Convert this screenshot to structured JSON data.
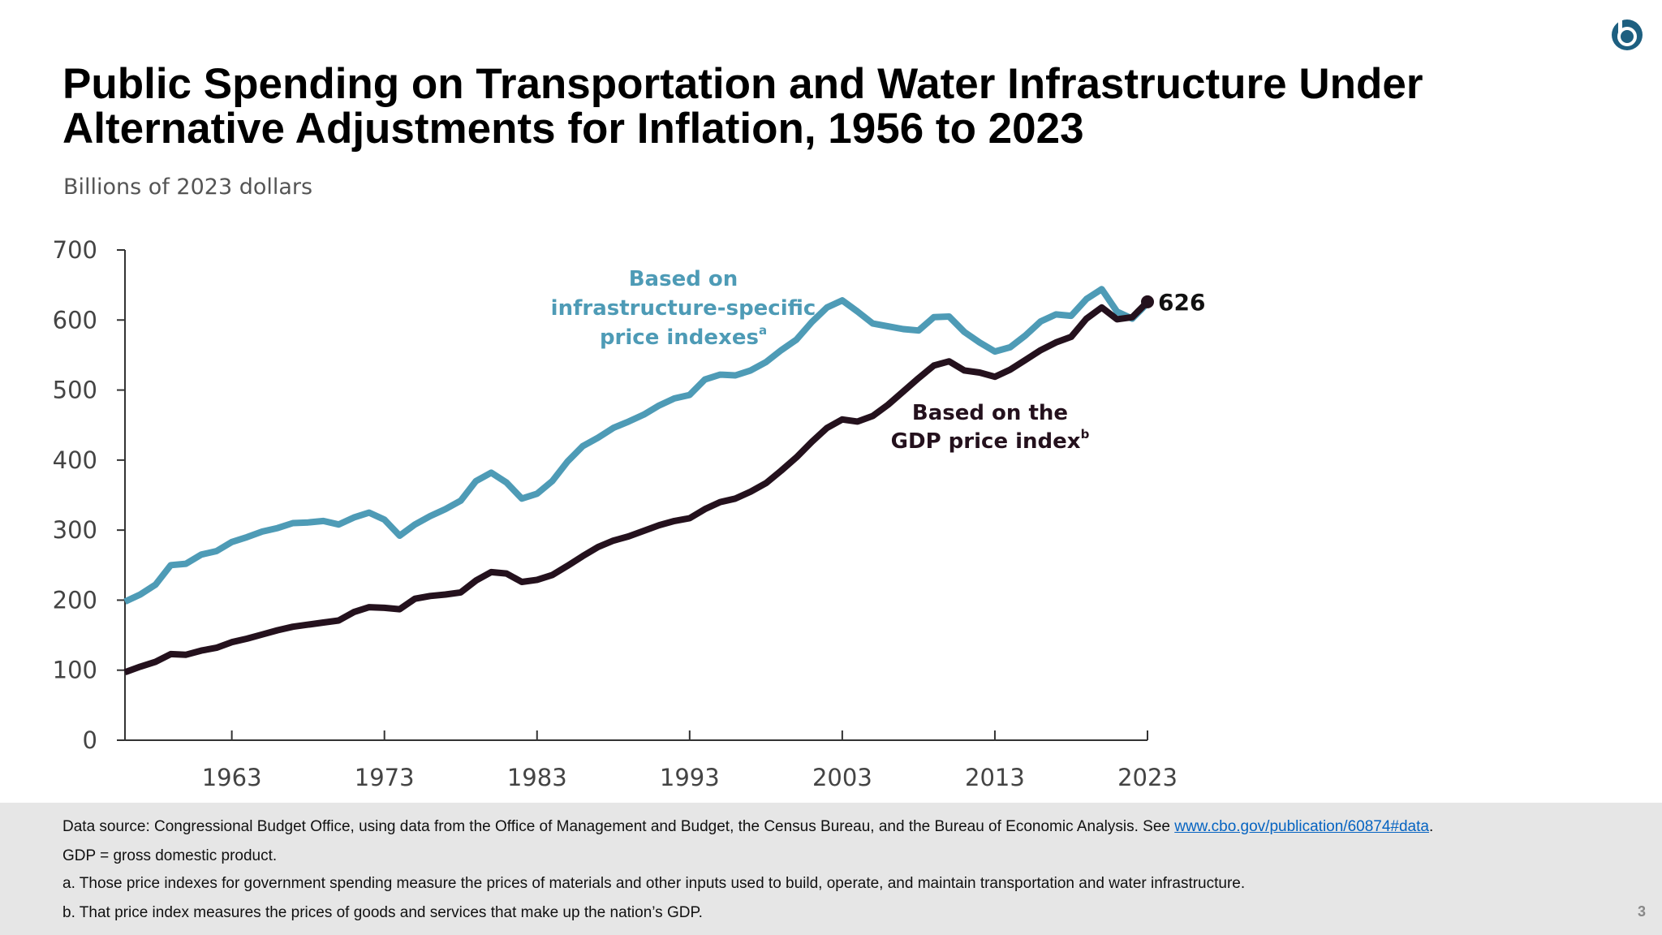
{
  "chart_data": {
    "type": "line",
    "title": [
      "Public Spending on Transportation and Water Infrastructure Under",
      "Alternative Adjustments for Inflation, 1956 to 2023"
    ],
    "subtitle": "Billions of 2023 dollars",
    "x": [
      1956,
      1957,
      1958,
      1959,
      1960,
      1961,
      1962,
      1963,
      1964,
      1965,
      1966,
      1967,
      1968,
      1969,
      1970,
      1971,
      1972,
      1973,
      1974,
      1975,
      1976,
      1977,
      1978,
      1979,
      1980,
      1981,
      1982,
      1983,
      1984,
      1985,
      1986,
      1987,
      1988,
      1989,
      1990,
      1991,
      1992,
      1993,
      1994,
      1995,
      1996,
      1997,
      1998,
      1999,
      2000,
      2001,
      2002,
      2003,
      2004,
      2005,
      2006,
      2007,
      2008,
      2009,
      2010,
      2011,
      2012,
      2013,
      2014,
      2015,
      2016,
      2017,
      2018,
      2019,
      2020,
      2021,
      2022,
      2023
    ],
    "xlim": [
      1956,
      2023
    ],
    "xticks": [
      1963,
      1973,
      1983,
      1993,
      2003,
      2013,
      2023
    ],
    "ylim": [
      0,
      700
    ],
    "yticks": [
      0,
      100,
      200,
      300,
      400,
      500,
      600,
      700
    ],
    "series": [
      {
        "name": [
          "Based on",
          "infrastructure-specific",
          "price indexes"
        ],
        "note": "a",
        "color": "#4e9bb6",
        "values": [
          198,
          208,
          222,
          250,
          252,
          265,
          270,
          283,
          290,
          298,
          303,
          310,
          311,
          313,
          308,
          318,
          325,
          315,
          292,
          308,
          320,
          330,
          342,
          370,
          382,
          368,
          345,
          352,
          370,
          398,
          420,
          432,
          446,
          455,
          465,
          478,
          488,
          493,
          515,
          522,
          521,
          528,
          540,
          557,
          572,
          597,
          618,
          628,
          612,
          595,
          591,
          587,
          585,
          604,
          605,
          583,
          568,
          555,
          561,
          578,
          598,
          608,
          606,
          630,
          644,
          612,
          602,
          624
        ]
      },
      {
        "name": [
          "Based on the",
          "GDP price index"
        ],
        "note": "b",
        "color": "#24111d",
        "values": [
          97,
          105,
          112,
          123,
          122,
          128,
          132,
          140,
          145,
          151,
          157,
          162,
          165,
          168,
          171,
          183,
          190,
          189,
          187,
          202,
          206,
          208,
          211,
          228,
          240,
          238,
          226,
          229,
          236,
          249,
          263,
          276,
          285,
          291,
          299,
          307,
          313,
          317,
          330,
          340,
          345,
          355,
          367,
          385,
          404,
          426,
          446,
          458,
          455,
          463,
          479,
          498,
          517,
          535,
          541,
          528,
          525,
          519,
          529,
          543,
          557,
          568,
          576,
          602,
          618,
          601,
          604,
          626
        ]
      }
    ],
    "source": {
      "text": "Data source: Congressional Budget Office, using data from the Office of Management and Budget, the Census Bureau, and the Bureau of Economic Analysis. See ",
      "link": "www.cbo.gov/publication/60874#data",
      "end": "."
    },
    "footnotes": [
      "GDP = gross domestic product.",
      "a. Those price indexes for government spending measure the prices of materials and other inputs used to build, operate, and maintain transportation and water infrastructure.",
      "b. That price index measures the prices of goods and services that make up the nation’s GDP."
    ],
    "page_number": "3"
  }
}
